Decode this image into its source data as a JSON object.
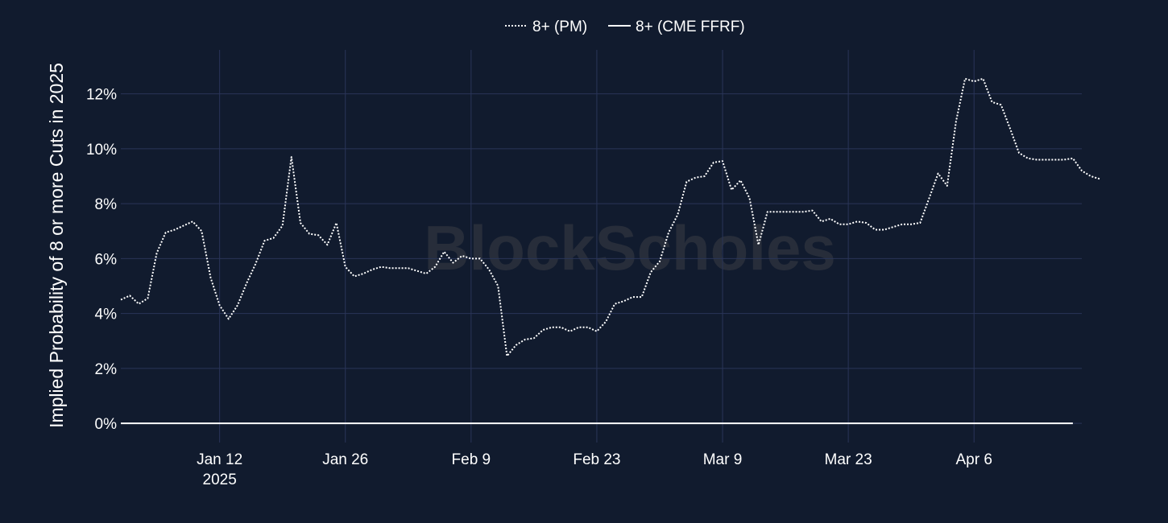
{
  "chart_data": {
    "type": "line",
    "xlabel": "",
    "ylabel": "Implied Probability of 8 or more Cuts in 2025",
    "watermark": "BlockScholes",
    "colors": {
      "background": "#111b2e",
      "grid": "#2a3558",
      "line": "#ffffff"
    },
    "grid": true,
    "legend_position": "top-center",
    "xlim": [
      "2025-01-04",
      "2025-04-16"
    ],
    "ylim": [
      -0.7,
      13.6
    ],
    "x_ticks": [
      {
        "date": "2025-01-12",
        "label": "Jan 12",
        "sublabel": "2025"
      },
      {
        "date": "2025-01-26",
        "label": "Jan 26",
        "sublabel": ""
      },
      {
        "date": "2025-02-09",
        "label": "Feb 9",
        "sublabel": ""
      },
      {
        "date": "2025-02-23",
        "label": "Feb 23",
        "sublabel": ""
      },
      {
        "date": "2025-03-09",
        "label": "Mar 9",
        "sublabel": ""
      },
      {
        "date": "2025-03-23",
        "label": "Mar 23",
        "sublabel": ""
      },
      {
        "date": "2025-04-06",
        "label": "Apr 6",
        "sublabel": ""
      }
    ],
    "y_ticks": [
      {
        "value": 0,
        "label": "0%"
      },
      {
        "value": 2,
        "label": "2%"
      },
      {
        "value": 4,
        "label": "4%"
      },
      {
        "value": 6,
        "label": "6%"
      },
      {
        "value": 8,
        "label": "8%"
      },
      {
        "value": 10,
        "label": "10%"
      },
      {
        "value": 12,
        "label": "12%"
      }
    ],
    "series": [
      {
        "name": "8+ (PM)",
        "style": "dotted",
        "points": [
          [
            "2025-01-01",
            4.5
          ],
          [
            "2025-01-02",
            4.65
          ],
          [
            "2025-01-03",
            4.35
          ],
          [
            "2025-01-04",
            4.55
          ],
          [
            "2025-01-05",
            6.2
          ],
          [
            "2025-01-06",
            6.95
          ],
          [
            "2025-01-07",
            7.05
          ],
          [
            "2025-01-08",
            7.2
          ],
          [
            "2025-01-09",
            7.35
          ],
          [
            "2025-01-10",
            7.0
          ],
          [
            "2025-01-11",
            5.3
          ],
          [
            "2025-01-12",
            4.3
          ],
          [
            "2025-01-13",
            3.8
          ],
          [
            "2025-01-14",
            4.3
          ],
          [
            "2025-01-15",
            5.1
          ],
          [
            "2025-01-16",
            5.8
          ],
          [
            "2025-01-17",
            6.65
          ],
          [
            "2025-01-18",
            6.75
          ],
          [
            "2025-01-19",
            7.2
          ],
          [
            "2025-01-20",
            9.7
          ],
          [
            "2025-01-21",
            7.3
          ],
          [
            "2025-01-22",
            6.9
          ],
          [
            "2025-01-23",
            6.85
          ],
          [
            "2025-01-24",
            6.5
          ],
          [
            "2025-01-25",
            7.3
          ],
          [
            "2025-01-26",
            5.7
          ],
          [
            "2025-01-27",
            5.35
          ],
          [
            "2025-01-28",
            5.45
          ],
          [
            "2025-01-29",
            5.6
          ],
          [
            "2025-01-30",
            5.7
          ],
          [
            "2025-01-31",
            5.65
          ],
          [
            "2025-02-01",
            5.65
          ],
          [
            "2025-02-02",
            5.65
          ],
          [
            "2025-02-03",
            5.55
          ],
          [
            "2025-02-04",
            5.45
          ],
          [
            "2025-02-05",
            5.7
          ],
          [
            "2025-02-06",
            6.25
          ],
          [
            "2025-02-07",
            5.85
          ],
          [
            "2025-02-08",
            6.1
          ],
          [
            "2025-02-09",
            6.0
          ],
          [
            "2025-02-10",
            6.0
          ],
          [
            "2025-02-11",
            5.6
          ],
          [
            "2025-02-12",
            5.0
          ],
          [
            "2025-02-13",
            2.45
          ],
          [
            "2025-02-14",
            2.85
          ],
          [
            "2025-02-15",
            3.05
          ],
          [
            "2025-02-16",
            3.1
          ],
          [
            "2025-02-17",
            3.4
          ],
          [
            "2025-02-18",
            3.5
          ],
          [
            "2025-02-19",
            3.5
          ],
          [
            "2025-02-20",
            3.35
          ],
          [
            "2025-02-21",
            3.5
          ],
          [
            "2025-02-22",
            3.5
          ],
          [
            "2025-02-23",
            3.35
          ],
          [
            "2025-02-24",
            3.7
          ],
          [
            "2025-02-25",
            4.35
          ],
          [
            "2025-02-26",
            4.45
          ],
          [
            "2025-02-27",
            4.6
          ],
          [
            "2025-02-28",
            4.6
          ],
          [
            "2025-03-01",
            5.5
          ],
          [
            "2025-03-02",
            5.9
          ],
          [
            "2025-03-03",
            6.95
          ],
          [
            "2025-03-04",
            7.6
          ],
          [
            "2025-03-05",
            8.8
          ],
          [
            "2025-03-06",
            8.95
          ],
          [
            "2025-03-07",
            9.0
          ],
          [
            "2025-03-08",
            9.5
          ],
          [
            "2025-03-09",
            9.55
          ],
          [
            "2025-03-10",
            8.5
          ],
          [
            "2025-03-11",
            8.85
          ],
          [
            "2025-03-12",
            8.2
          ],
          [
            "2025-03-13",
            6.5
          ],
          [
            "2025-03-14",
            7.7
          ],
          [
            "2025-03-15",
            7.7
          ],
          [
            "2025-03-16",
            7.7
          ],
          [
            "2025-03-17",
            7.7
          ],
          [
            "2025-03-18",
            7.7
          ],
          [
            "2025-03-19",
            7.75
          ],
          [
            "2025-03-20",
            7.35
          ],
          [
            "2025-03-21",
            7.45
          ],
          [
            "2025-03-22",
            7.25
          ],
          [
            "2025-03-23",
            7.25
          ],
          [
            "2025-03-24",
            7.35
          ],
          [
            "2025-03-25",
            7.3
          ],
          [
            "2025-03-26",
            7.05
          ],
          [
            "2025-03-27",
            7.05
          ],
          [
            "2025-03-28",
            7.15
          ],
          [
            "2025-03-29",
            7.25
          ],
          [
            "2025-03-30",
            7.25
          ],
          [
            "2025-03-31",
            7.3
          ],
          [
            "2025-04-01",
            8.2
          ],
          [
            "2025-04-02",
            9.1
          ],
          [
            "2025-04-03",
            8.65
          ],
          [
            "2025-04-04",
            11.0
          ],
          [
            "2025-04-05",
            12.55
          ],
          [
            "2025-04-06",
            12.45
          ],
          [
            "2025-04-07",
            12.55
          ],
          [
            "2025-04-08",
            11.7
          ],
          [
            "2025-04-09",
            11.6
          ],
          [
            "2025-04-10",
            10.75
          ],
          [
            "2025-04-11",
            9.85
          ],
          [
            "2025-04-12",
            9.65
          ],
          [
            "2025-04-13",
            9.6
          ],
          [
            "2025-04-14",
            9.6
          ],
          [
            "2025-04-15",
            9.6
          ],
          [
            "2025-04-16",
            9.6
          ],
          [
            "2025-04-17",
            9.65
          ],
          [
            "2025-04-18",
            9.2
          ],
          [
            "2025-04-19",
            9.0
          ],
          [
            "2025-04-20",
            8.9
          ]
        ]
      },
      {
        "name": "8+ (CME FFRF)",
        "style": "solid",
        "points": [
          [
            "2025-01-01",
            0
          ],
          [
            "2025-04-17",
            0
          ]
        ]
      }
    ]
  }
}
